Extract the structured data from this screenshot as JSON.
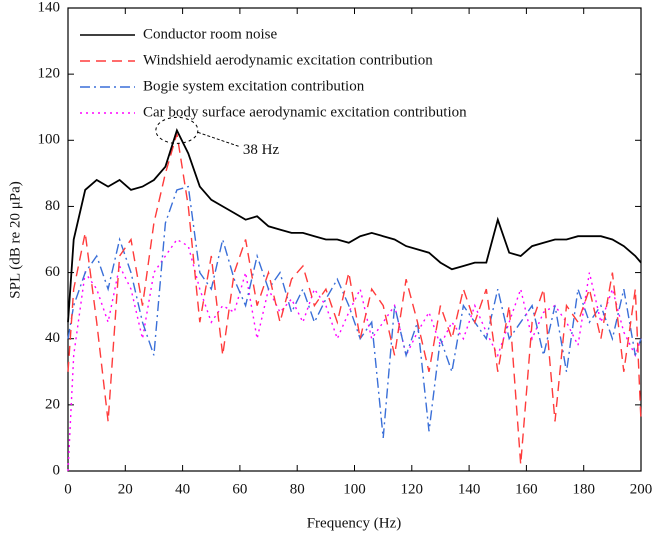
{
  "chart_data": {
    "type": "line",
    "xlabel": "Frequency (Hz)",
    "ylabel": "SPL (dB re 20 μPa)",
    "x": [
      0,
      2,
      6,
      10,
      14,
      18,
      22,
      26,
      30,
      34,
      38,
      42,
      46,
      50,
      54,
      58,
      62,
      66,
      70,
      74,
      78,
      82,
      86,
      90,
      94,
      98,
      102,
      106,
      110,
      114,
      118,
      122,
      126,
      130,
      134,
      138,
      142,
      146,
      150,
      154,
      158,
      162,
      166,
      170,
      174,
      178,
      182,
      186,
      190,
      194,
      198,
      200
    ],
    "series": [
      {
        "name": "Conductor room noise",
        "color": "#000000",
        "dash": "solid",
        "values": [
          45,
          70,
          85,
          88,
          86,
          88,
          85,
          86,
          88,
          92,
          103,
          96,
          86,
          82,
          80,
          78,
          76,
          77,
          74,
          73,
          72,
          72,
          71,
          70,
          70,
          69,
          71,
          72,
          71,
          70,
          68,
          67,
          66,
          63,
          61,
          62,
          63,
          63,
          76,
          66,
          65,
          68,
          69,
          70,
          70,
          71,
          71,
          71,
          70,
          68,
          65,
          63
        ]
      },
      {
        "name": "Windshield aerodynamic excitation contribution",
        "color": "#ff3b3b",
        "dash": "dashed",
        "values": [
          30,
          55,
          72,
          45,
          15,
          65,
          70,
          50,
          75,
          90,
          102,
          80,
          45,
          65,
          35,
          60,
          70,
          50,
          60,
          45,
          58,
          62,
          50,
          55,
          45,
          60,
          40,
          55,
          50,
          35,
          58,
          45,
          30,
          50,
          40,
          55,
          45,
          55,
          30,
          50,
          2,
          45,
          55,
          15,
          50,
          45,
          55,
          40,
          60,
          30,
          55,
          15
        ]
      },
      {
        "name": "Bogie system excitation contribution",
        "color": "#3a6fd8",
        "dash": "dashdot",
        "values": [
          40,
          50,
          60,
          65,
          55,
          70,
          60,
          45,
          35,
          75,
          85,
          86,
          60,
          55,
          70,
          58,
          50,
          65,
          55,
          60,
          48,
          55,
          45,
          52,
          58,
          50,
          40,
          45,
          10,
          50,
          35,
          45,
          12,
          40,
          30,
          50,
          45,
          40,
          55,
          40,
          45,
          50,
          35,
          50,
          30,
          55,
          45,
          50,
          40,
          55,
          35,
          40
        ]
      },
      {
        "name": "Car body surface aerodynamic excitation contribution",
        "color": "#ff00ff",
        "dash": "dotted",
        "values": [
          0,
          35,
          60,
          55,
          45,
          62,
          55,
          40,
          60,
          65,
          70,
          68,
          55,
          45,
          50,
          48,
          60,
          40,
          55,
          48,
          52,
          45,
          55,
          50,
          40,
          48,
          55,
          40,
          45,
          50,
          35,
          42,
          48,
          38,
          45,
          40,
          50,
          42,
          35,
          45,
          55,
          40,
          48,
          50,
          45,
          38,
          60,
          45,
          55,
          42,
          35,
          40
        ]
      }
    ],
    "annotations": [
      {
        "text": "38 Hz",
        "x": 38,
        "y": 103
      }
    ],
    "xlim": [
      0,
      200
    ],
    "xticks": [
      0,
      20,
      40,
      60,
      80,
      100,
      120,
      140,
      160,
      180,
      200
    ],
    "ylim": [
      0,
      140
    ],
    "yticks": [
      0,
      20,
      40,
      60,
      80,
      100,
      120,
      140
    ],
    "grid": false,
    "legend": "upper left"
  }
}
